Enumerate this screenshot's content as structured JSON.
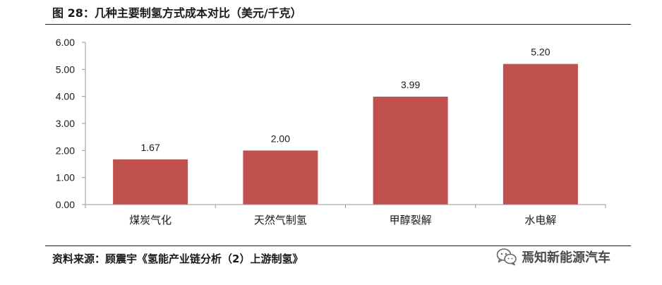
{
  "figure": {
    "title": "图 28：几种主要制氢方式成本对比（美元/千克）",
    "source": "资料来源：顾震宇《氢能产业链分析（2）上游制氢》",
    "watermark": "焉知新能源汽车",
    "watermark_icon": "wechat-icon"
  },
  "colors": {
    "bar": "#C0504D",
    "axis": "#9a9a9a",
    "text": "#1a1a1a"
  },
  "chart_data": {
    "type": "bar",
    "categories": [
      "煤炭气化",
      "天然气制氢",
      "甲醇裂解",
      "水电解"
    ],
    "values": [
      1.67,
      2.0,
      3.99,
      5.2
    ],
    "value_labels": [
      "1.67",
      "2.00",
      "3.99",
      "5.20"
    ],
    "y_ticks": [
      "0.00",
      "1.00",
      "2.00",
      "3.00",
      "4.00",
      "5.00",
      "6.00"
    ],
    "ylim": [
      0,
      6
    ],
    "grid": false,
    "legend": "none"
  }
}
